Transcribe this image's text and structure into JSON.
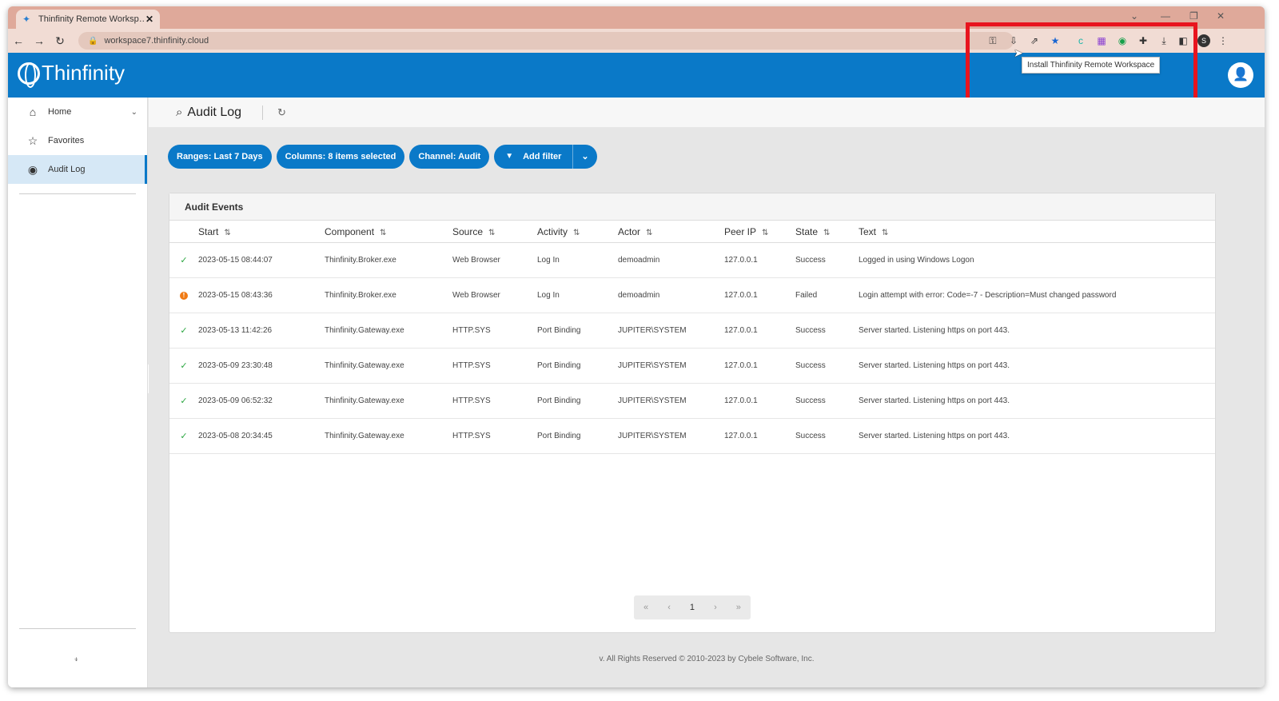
{
  "browser": {
    "tab_title": "Thinfinity Remote Worksp…",
    "url": "workspace7.thinfinity.cloud",
    "tooltip": "Install Thinfinity Remote Workspace",
    "profile_initial": "S"
  },
  "app": {
    "logo_text": "Thinfinity"
  },
  "sidebar": {
    "items": [
      {
        "label": "Home"
      },
      {
        "label": "Favorites"
      },
      {
        "label": "Audit Log"
      }
    ]
  },
  "page": {
    "title": "Audit Log"
  },
  "chips": {
    "range": "Ranges: Last 7 Days",
    "columns": "Columns: 8 items selected",
    "channel": "Channel: Audit",
    "add_filter": "Add filter"
  },
  "table": {
    "title": "Audit Events",
    "headers": [
      "Start",
      "Component",
      "Source",
      "Activity",
      "Actor",
      "Peer IP",
      "State",
      "Text"
    ],
    "rows": [
      {
        "status": "ok",
        "start": "2023-05-15 08:44:07",
        "component": "Thinfinity.Broker.exe",
        "source": "Web Browser",
        "activity": "Log In",
        "actor": "demoadmin",
        "ip": "127.0.0.1",
        "state": "Success",
        "text": "Logged in using Windows Logon"
      },
      {
        "status": "error",
        "start": "2023-05-15 08:43:36",
        "component": "Thinfinity.Broker.exe",
        "source": "Web Browser",
        "activity": "Log In",
        "actor": "demoadmin",
        "ip": "127.0.0.1",
        "state": "Failed",
        "text": "Login attempt with error: Code=-7 - Description=Must changed password"
      },
      {
        "status": "ok",
        "start": "2023-05-13 11:42:26",
        "component": "Thinfinity.Gateway.exe",
        "source": "HTTP.SYS",
        "activity": "Port Binding",
        "actor": "JUPITER\\SYSTEM",
        "ip": "127.0.0.1",
        "state": "Success",
        "text": "Server started. Listening https on port 443."
      },
      {
        "status": "ok",
        "start": "2023-05-09 23:30:48",
        "component": "Thinfinity.Gateway.exe",
        "source": "HTTP.SYS",
        "activity": "Port Binding",
        "actor": "JUPITER\\SYSTEM",
        "ip": "127.0.0.1",
        "state": "Success",
        "text": "Server started. Listening https on port 443."
      },
      {
        "status": "ok",
        "start": "2023-05-09 06:52:32",
        "component": "Thinfinity.Gateway.exe",
        "source": "HTTP.SYS",
        "activity": "Port Binding",
        "actor": "JUPITER\\SYSTEM",
        "ip": "127.0.0.1",
        "state": "Success",
        "text": "Server started. Listening https on port 443."
      },
      {
        "status": "ok",
        "start": "2023-05-08 20:34:45",
        "component": "Thinfinity.Gateway.exe",
        "source": "HTTP.SYS",
        "activity": "Port Binding",
        "actor": "JUPITER\\SYSTEM",
        "ip": "127.0.0.1",
        "state": "Success",
        "text": "Server started. Listening https on port 443."
      }
    ]
  },
  "pager": {
    "current_page": "1"
  },
  "footer": {
    "text": "v. All Rights Reserved © 2010-2023 by Cybele Software, Inc."
  },
  "colors": {
    "brand": "#0a79c8",
    "success": "#2aa640",
    "warning": "#f07a14",
    "highlight": "#e8141e"
  }
}
